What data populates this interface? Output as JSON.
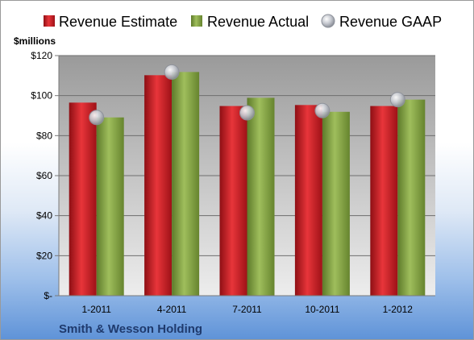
{
  "chart_data": {
    "type": "bar",
    "title": "",
    "ylabel": "$millions",
    "company": "Smith & Wesson Holding",
    "categories": [
      "1-2011",
      "4-2011",
      "7-2011",
      "10-2011",
      "1-2012"
    ],
    "series": [
      {
        "name": "Revenue Estimate",
        "kind": "bar",
        "values": [
          96.5,
          110.2,
          94.8,
          95.3,
          94.8
        ],
        "color": "#c0161e"
      },
      {
        "name": "Revenue Actual",
        "kind": "bar",
        "values": [
          89.1,
          111.8,
          98.9,
          91.9,
          98.0
        ],
        "color": "#7c9a3d"
      },
      {
        "name": "Revenue GAAP",
        "kind": "marker",
        "values": [
          89.1,
          111.8,
          91.4,
          92.5,
          98.0
        ],
        "color": "#b8bcc4"
      }
    ],
    "ylim": [
      0,
      120
    ],
    "yticks": [
      0,
      20,
      40,
      60,
      80,
      100,
      120
    ],
    "ytick_labels": [
      "$-",
      "$20",
      "$40",
      "$60",
      "$80",
      "$100",
      "$120"
    ],
    "grid": true,
    "legend_position": "top"
  }
}
